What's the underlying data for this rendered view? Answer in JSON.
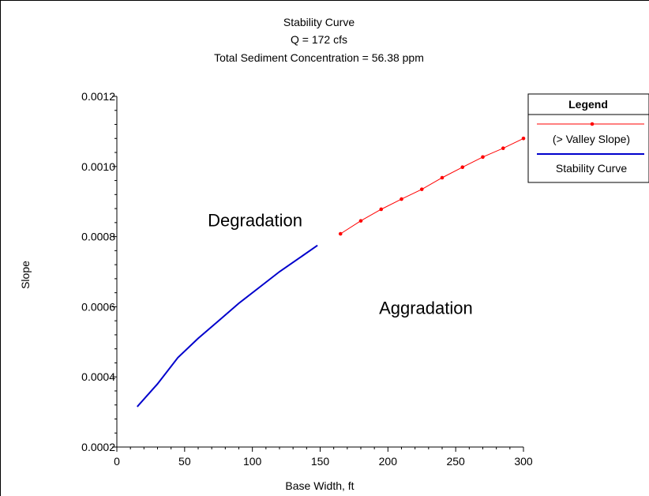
{
  "chart_data": {
    "type": "line",
    "title_lines": [
      "Stability Curve",
      "Q = 172 cfs",
      "Total Sediment Concentration = 56.38 ppm"
    ],
    "xlabel": "Base Width, ft",
    "ylabel": "Slope",
    "xlim": [
      0,
      300
    ],
    "ylim": [
      0.0002,
      0.0012
    ],
    "x_ticks": [
      0,
      50,
      100,
      150,
      200,
      250,
      300
    ],
    "y_ticks": [
      0.0002,
      0.0004,
      0.0006,
      0.0008,
      0.001,
      0.0012
    ],
    "x_tick_labels": [
      "0",
      "50",
      "100",
      "150",
      "200",
      "250",
      "300"
    ],
    "y_tick_labels": [
      "0.0002",
      "0.0004",
      "0.0006",
      "0.0008",
      "0.0010",
      "0.0012"
    ],
    "grid": false,
    "legend_position": "top-right",
    "legend_title": "Legend",
    "annotations": [
      {
        "text": "Degradation",
        "x": 102,
        "y": 0.00083
      },
      {
        "text": "Aggradation",
        "x": 228,
        "y": 0.00058
      }
    ],
    "series": [
      {
        "name": "Stability Curve",
        "color": "#0000cc",
        "style": "line",
        "x": [
          15,
          30,
          45,
          60,
          75,
          90,
          105,
          120,
          135,
          148
        ],
        "y": [
          0.000315,
          0.00038,
          0.000455,
          0.00051,
          0.00056,
          0.00061,
          0.000655,
          0.0007,
          0.00074,
          0.000775
        ]
      },
      {
        "name": "(> Valley Slope)",
        "color": "#ff0000",
        "style": "line-markers",
        "x": [
          165,
          180,
          195,
          210,
          225,
          240,
          255,
          270,
          285,
          300
        ],
        "y": [
          0.000808,
          0.000845,
          0.000878,
          0.000907,
          0.000935,
          0.000968,
          0.000998,
          0.001027,
          0.001052,
          0.00108
        ]
      }
    ]
  }
}
